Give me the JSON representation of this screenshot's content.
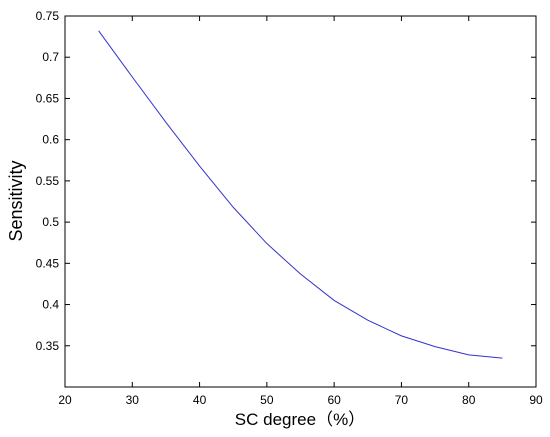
{
  "chart_data": {
    "type": "line",
    "xlabel": "SC degree（%）",
    "ylabel": "Sensitivity",
    "xlim": [
      20,
      90
    ],
    "ylim": [
      0.3,
      0.75
    ],
    "xticks": [
      "20",
      "30",
      "40",
      "50",
      "60",
      "70",
      "80",
      "90"
    ],
    "yticks": [
      "0.35",
      "0.4",
      "0.45",
      "0.5",
      "0.55",
      "0.6",
      "0.65",
      "0.7",
      "0.75"
    ],
    "grid": false,
    "series": [
      {
        "color": "#3333cc",
        "x": [
          25,
          30,
          35,
          40,
          45,
          50,
          55,
          60,
          65,
          70,
          75,
          80,
          85
        ],
        "y": [
          0.732,
          0.676,
          0.621,
          0.568,
          0.518,
          0.474,
          0.437,
          0.405,
          0.381,
          0.362,
          0.349,
          0.339,
          0.335
        ]
      }
    ]
  }
}
